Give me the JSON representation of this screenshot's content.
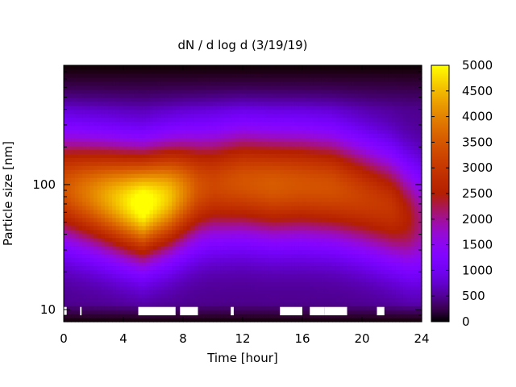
{
  "chart_data": {
    "type": "heatmap",
    "title": "dN / d log d (3/19/19)",
    "xlabel": "Time [hour]",
    "ylabel": "Particle size [nm]",
    "xlim": [
      0,
      24
    ],
    "ylim": [
      8,
      900
    ],
    "yscale": "log",
    "x_ticks": [
      0,
      4,
      8,
      12,
      16,
      20,
      24
    ],
    "y_ticks": [
      10,
      100
    ],
    "colorbar": {
      "range": [
        0,
        5000
      ],
      "ticks": [
        0,
        500,
        1000,
        1500,
        2000,
        2500,
        3000,
        3500,
        4000,
        4500,
        5000
      ],
      "colormap": "gnuplot",
      "position": "right"
    },
    "size_distribution": {
      "hours": [
        0,
        2,
        4,
        5.3,
        7,
        9,
        10,
        12,
        14,
        16,
        18,
        20,
        22,
        23,
        24
      ],
      "peak_diameter_nm": [
        95,
        85,
        75,
        70,
        80,
        95,
        100,
        105,
        100,
        100,
        95,
        80,
        65,
        55,
        50
      ],
      "peak_value": [
        3000,
        3600,
        4300,
        4800,
        4200,
        3000,
        2800,
        3000,
        3100,
        3000,
        2950,
        2700,
        2500,
        2100,
        1600
      ]
    },
    "bottom_gap_segments_hours": [
      [
        0,
        0.2
      ],
      [
        1.1,
        1.2
      ],
      [
        5,
        6
      ],
      [
        6,
        7.5
      ],
      [
        7.8,
        8
      ],
      [
        8,
        9
      ],
      [
        11.2,
        11.4
      ],
      [
        14.5,
        16
      ],
      [
        16.5,
        17.5
      ],
      [
        17.5,
        19
      ],
      [
        21,
        21.5
      ]
    ]
  }
}
